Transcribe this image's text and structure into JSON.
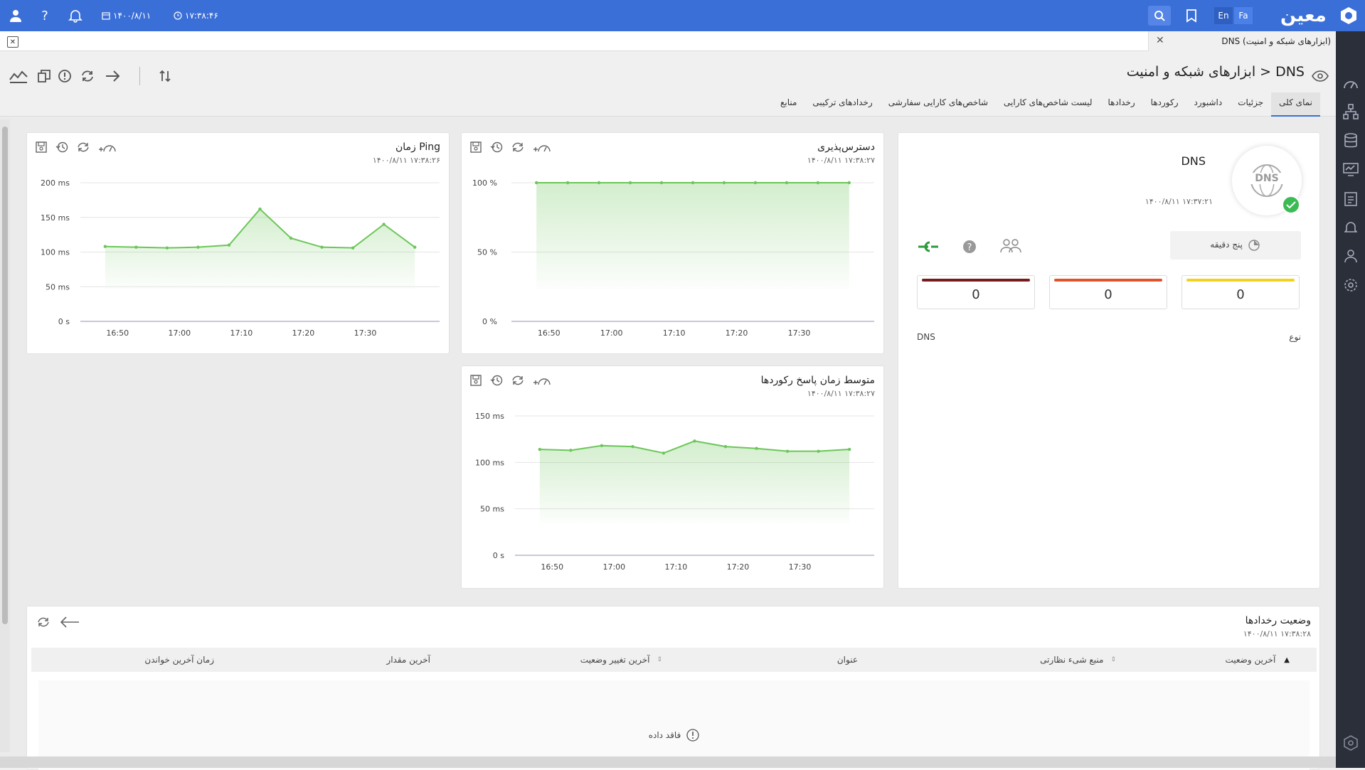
{
  "topbar": {
    "logo_text": "معین",
    "lang_en": "En",
    "lang_fa": "Fa",
    "date": "۱۴۰۰/۸/۱۱",
    "time": "۱۷:۳۸:۴۶"
  },
  "tab": {
    "label": "DNS (ابزارهای شبکه و امنیت)"
  },
  "header": {
    "breadcrumb": "ابزارهای شبکه و امنیت > DNS",
    "tabs": [
      "نمای کلی",
      "جزئیات",
      "داشبورد",
      "رکوردها",
      "رخدادها",
      "لیست شاخص‌های کارایی",
      "شاخص‌های کارایی سفارشی",
      "رخدادهای ترکیبی",
      "منابع"
    ],
    "active_tab": "نمای کلی"
  },
  "summary": {
    "title": "DNS",
    "icon_label": "DNS",
    "timestamp": "۱۴۰۰/۸/۱۱ ۱۷:۳۷:۲۱",
    "interval": "پنج دقیقه",
    "counts": [
      {
        "value": "0",
        "color": "#7a1b1b"
      },
      {
        "value": "0",
        "color": "#e0522a"
      },
      {
        "value": "0",
        "color": "#f2d21b"
      }
    ],
    "type_label": "نوع",
    "type_value": "DNS"
  },
  "availability": {
    "title": "دسترس‌پذیری",
    "timestamp": "۱۴۰۰/۸/۱۱ ۱۷:۳۸:۲۷"
  },
  "ping": {
    "title": "زمان Ping",
    "timestamp": "۱۴۰۰/۸/۱۱ ۱۷:۳۸:۲۶"
  },
  "response": {
    "title": "متوسط زمان پاسخ رکوردها",
    "timestamp": "۱۴۰۰/۸/۱۱ ۱۷:۳۸:۲۷"
  },
  "events": {
    "title": "وضعیت رخدادها",
    "timestamp": "۱۴۰۰/۸/۱۱ ۱۷:۳۸:۲۸",
    "columns": [
      "آخرین وضعیت",
      "منبع شیء نظارتی",
      "عنوان",
      "آخرین تغییر وضعیت",
      "آخرین مقدار",
      "زمان آخرین خواندن"
    ],
    "empty_text": "فاقد داده"
  },
  "chart_data": [
    {
      "type": "area",
      "title": "دسترس‌پذیری",
      "x": [
        "16:48",
        "16:53",
        "16:58",
        "17:03",
        "17:08",
        "17:13",
        "17:18",
        "17:23",
        "17:28",
        "17:33",
        "17:38"
      ],
      "xticks": [
        "16:50",
        "17:00",
        "17:10",
        "17:20",
        "17:30"
      ],
      "yticks": [
        "100 %",
        "50 %",
        "0 %"
      ],
      "ylim": [
        0,
        100
      ],
      "series": [
        {
          "values": [
            100,
            100,
            100,
            100,
            100,
            100,
            100,
            100,
            100,
            100,
            100
          ]
        }
      ],
      "color": "#6cc65a"
    },
    {
      "type": "area",
      "title": "زمان Ping",
      "x": [
        "16:48",
        "16:53",
        "16:58",
        "17:03",
        "17:08",
        "17:13",
        "17:18",
        "17:23",
        "17:28",
        "17:33",
        "17:38"
      ],
      "xticks": [
        "16:50",
        "17:00",
        "17:10",
        "17:20",
        "17:30"
      ],
      "yticks": [
        "200 ms",
        "150 ms",
        "100 ms",
        "50 ms",
        "0 s"
      ],
      "ylim": [
        0,
        200
      ],
      "series": [
        {
          "values": [
            108,
            107,
            106,
            107,
            110,
            162,
            120,
            107,
            106,
            140,
            107
          ]
        }
      ],
      "color": "#6cc65a"
    },
    {
      "type": "area",
      "title": "متوسط زمان پاسخ رکوردها",
      "x": [
        "16:48",
        "16:53",
        "16:58",
        "17:03",
        "17:08",
        "17:13",
        "17:18",
        "17:23",
        "17:28",
        "17:33",
        "17:38"
      ],
      "xticks": [
        "16:50",
        "17:00",
        "17:10",
        "17:20",
        "17:30"
      ],
      "yticks": [
        "150 ms",
        "100 ms",
        "50 ms",
        "0 s"
      ],
      "ylim": [
        0,
        150
      ],
      "series": [
        {
          "values": [
            114,
            113,
            118,
            117,
            110,
            123,
            117,
            115,
            112,
            112,
            114
          ]
        }
      ],
      "color": "#6cc65a"
    }
  ]
}
